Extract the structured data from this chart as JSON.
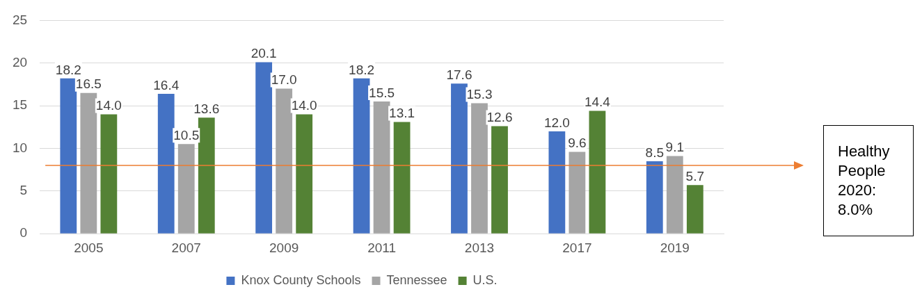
{
  "chart_data": {
    "type": "bar",
    "categories": [
      "2005",
      "2007",
      "2009",
      "2011",
      "2013",
      "2017",
      "2019"
    ],
    "series": [
      {
        "name": "Knox County Schools",
        "color": "#4472c4",
        "values": [
          18.2,
          16.4,
          20.1,
          18.2,
          17.6,
          12.0,
          8.5
        ]
      },
      {
        "name": "Tennessee",
        "color": "#a5a5a5",
        "values": [
          16.5,
          10.5,
          17.0,
          15.5,
          15.3,
          9.6,
          9.1
        ]
      },
      {
        "name": "U.S.",
        "color": "#548235",
        "values": [
          14.0,
          13.6,
          14.0,
          13.1,
          12.6,
          14.4,
          5.7
        ]
      }
    ],
    "value_labels": [
      [
        "18.2",
        "16.4",
        "20.1",
        "18.2",
        "17.6",
        "12.0",
        "8.5"
      ],
      [
        "16.5",
        "10.5",
        "17.0",
        "15.5",
        "15.3",
        "9.6",
        "9.1"
      ],
      [
        "14.0",
        "13.6",
        "14.0",
        "13.1",
        "12.6",
        "14.4",
        "5.7"
      ]
    ],
    "ylim": [
      0,
      25
    ],
    "yticks": [
      0,
      5,
      10,
      15,
      20,
      25
    ],
    "grid": "y",
    "legend": "bottom",
    "ref_lines": [
      {
        "axis": "y",
        "value": 8.0,
        "label": "Healthy People 2020: 8.0%",
        "color": "#ed7d31"
      }
    ]
  }
}
